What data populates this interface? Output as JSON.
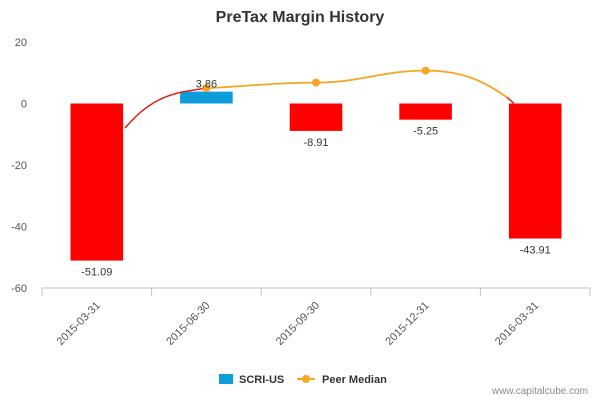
{
  "chart_data": {
    "type": "bar",
    "title": "PreTax Margin History",
    "xlabel": "",
    "ylabel": "",
    "ylim": [
      -60,
      20
    ],
    "y_ticks": [
      20,
      0,
      -20,
      -40,
      -60
    ],
    "categories": [
      "2015-03-31",
      "2015-06-30",
      "2015-09-30",
      "2015-12-31",
      "2016-03-31"
    ],
    "series": [
      {
        "name": "SCRI-US",
        "kind": "bar",
        "values": [
          -51.09,
          3.86,
          -8.91,
          -5.25,
          -43.91
        ],
        "labels": [
          "-51.09",
          "3.86",
          "-8.91",
          "-5.25",
          "-43.91"
        ],
        "positive_color": "#0d9ddb",
        "negative_color": "#ff0000",
        "legend_color": "#0d9ddb"
      },
      {
        "name": "Peer Median",
        "kind": "line",
        "values": [
          null,
          5.0,
          6.8,
          10.7,
          null
        ],
        "color": "#f5a623"
      }
    ],
    "line_segments_below_color": "#e0201e",
    "grid": false,
    "legend_position": "bottom-center"
  },
  "credit": "www.capitalcube.com"
}
